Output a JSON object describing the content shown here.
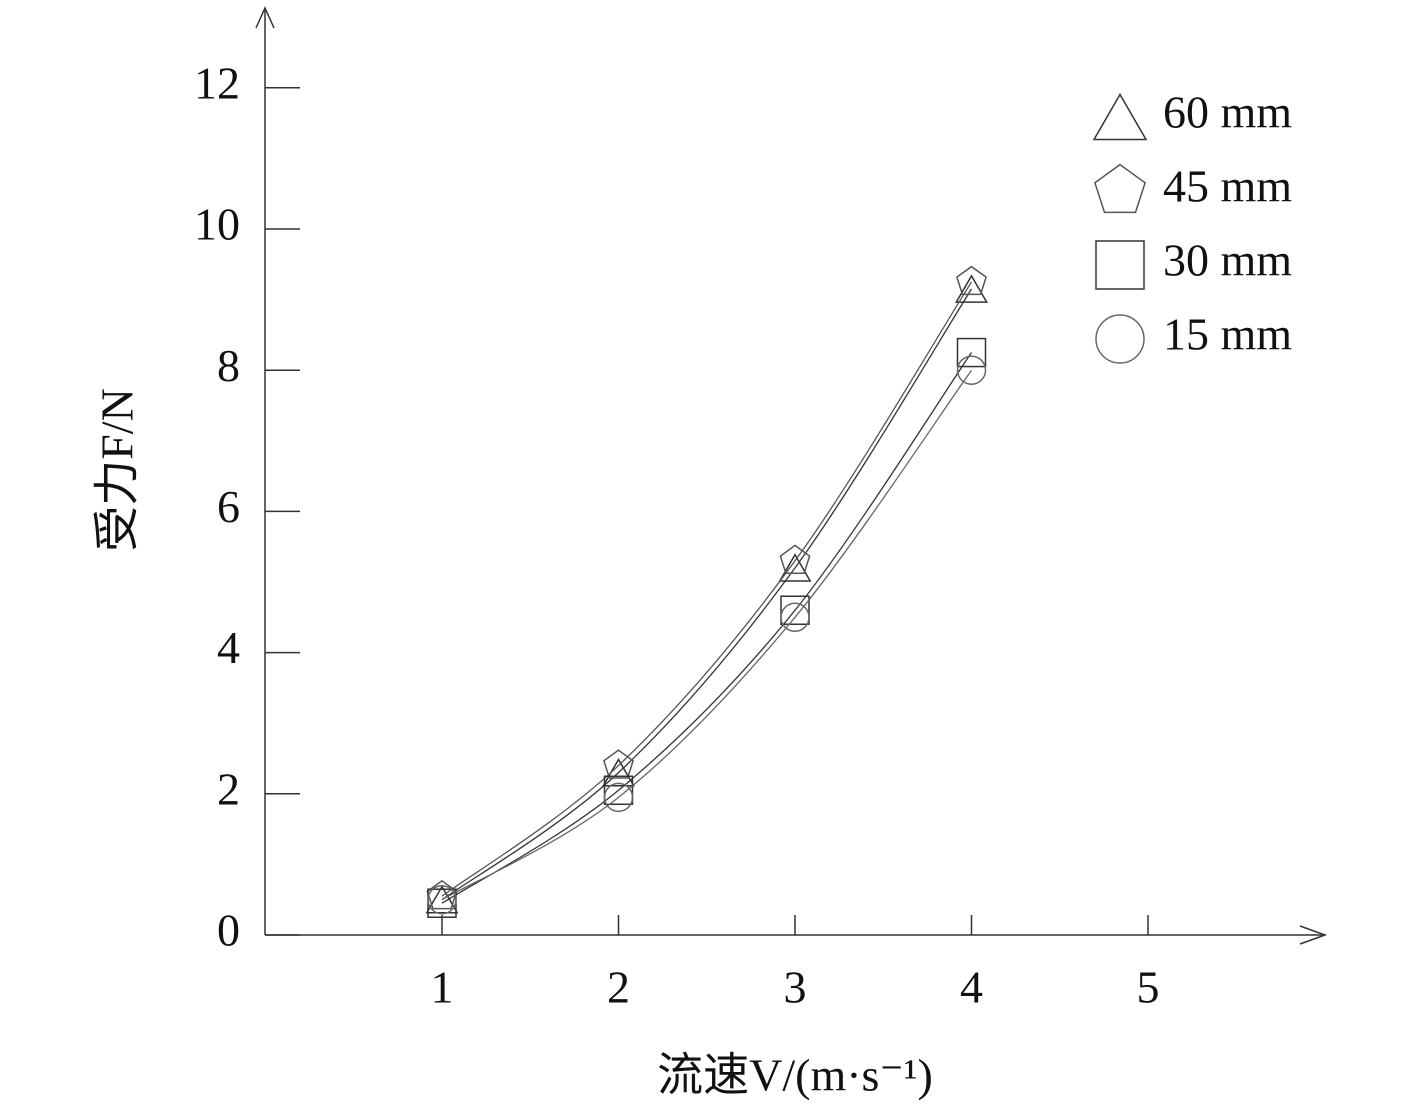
{
  "chart_data": {
    "type": "line",
    "x_label": "流速V/(m·s⁻¹)",
    "y_label": "受力F/N",
    "x": [
      1,
      2,
      3,
      4
    ],
    "xlim": [
      0,
      6
    ],
    "xticks": [
      1,
      2,
      3,
      4,
      5
    ],
    "ylim": [
      0,
      13
    ],
    "yticks": [
      0,
      2,
      4,
      6,
      8,
      10,
      12
    ],
    "legend": "upper right",
    "series": [
      {
        "name": "60 mm",
        "color": "#333333",
        "marker": "triangle",
        "values": [
          0.5,
          2.3,
          5.2,
          9.15
        ]
      },
      {
        "name": "45 mm",
        "color": "#555555",
        "marker": "pentagon",
        "values": [
          0.55,
          2.4,
          5.3,
          9.25
        ]
      },
      {
        "name": "30 mm",
        "color": "#333333",
        "marker": "square",
        "values": [
          0.45,
          2.05,
          4.6,
          8.25
        ]
      },
      {
        "name": "15 mm",
        "color": "#666666",
        "marker": "circle",
        "values": [
          0.5,
          1.95,
          4.5,
          8.0
        ]
      }
    ]
  }
}
